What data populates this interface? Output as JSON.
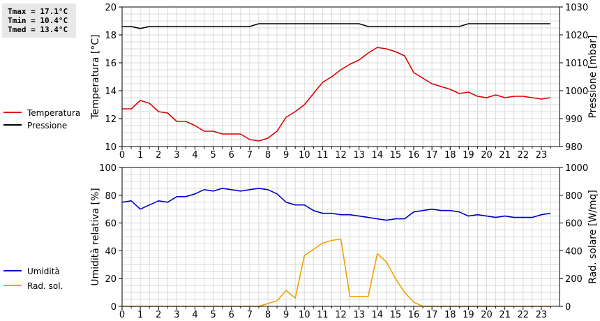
{
  "stats": {
    "tmax": "Tmax = 17.1°C",
    "tmin": "Tmin = 10.4°C",
    "tmed": "Tmed = 13.4°C"
  },
  "legend_top": [
    {
      "label": "Temperatura",
      "color": "#dd0000"
    },
    {
      "label": "Pressione",
      "color": "#000000"
    }
  ],
  "legend_bottom": [
    {
      "label": "Umidità",
      "color": "#0000cc"
    },
    {
      "label": "Rad. sol.",
      "color": "#f0a000"
    }
  ],
  "chart_data": [
    {
      "type": "line",
      "xlim": [
        0,
        24
      ],
      "x_ticks": [
        "0",
        "1",
        "2",
        "3",
        "4",
        "5",
        "6",
        "7",
        "8",
        "9",
        "10",
        "11",
        "12",
        "13",
        "14",
        "15",
        "16",
        "17",
        "18",
        "19",
        "20",
        "21",
        "22",
        "23"
      ],
      "grid": true,
      "ylabel": "Temperatura [°C]",
      "ylim": [
        10,
        20
      ],
      "y_ticks": [
        "10",
        "12",
        "14",
        "16",
        "18",
        "20"
      ],
      "y2label": "Pressione [mbar]",
      "y2lim": [
        980,
        1030
      ],
      "y2_ticks": [
        "980",
        "990",
        "1000",
        "1010",
        "1020",
        "1030"
      ],
      "series": [
        {
          "name": "Temperatura",
          "color": "#dd0000",
          "axis": "left",
          "x": [
            0,
            0.5,
            1,
            1.5,
            2,
            2.5,
            3,
            3.5,
            4,
            4.5,
            5,
            5.5,
            6,
            6.5,
            7,
            7.5,
            8,
            8.5,
            9,
            9.5,
            10,
            10.5,
            11,
            11.5,
            12,
            12.5,
            13,
            13.5,
            14,
            14.5,
            15,
            15.5,
            16,
            16.5,
            17,
            17.5,
            18,
            18.5,
            19,
            19.5,
            20,
            20.5,
            21,
            21.5,
            22,
            22.5,
            23,
            23.5
          ],
          "values": [
            12.7,
            12.7,
            13.3,
            13.1,
            12.5,
            12.4,
            11.8,
            11.8,
            11.5,
            11.1,
            11.1,
            10.9,
            10.9,
            10.9,
            10.5,
            10.4,
            10.6,
            11.1,
            12.1,
            12.5,
            13.0,
            13.8,
            14.6,
            15.0,
            15.5,
            15.9,
            16.2,
            16.7,
            17.1,
            17.0,
            16.8,
            16.5,
            15.3,
            14.9,
            14.5,
            14.3,
            14.1,
            13.8,
            13.9,
            13.6,
            13.5,
            13.7,
            13.5,
            13.6,
            13.6,
            13.5,
            13.4,
            13.5
          ]
        },
        {
          "name": "Pressione",
          "color": "#000000",
          "axis": "right",
          "x": [
            0,
            0.5,
            1,
            1.5,
            2,
            3,
            4,
            5,
            6,
            7,
            7.5,
            8,
            9,
            10,
            11,
            12,
            13,
            13.5,
            14,
            15,
            16,
            17,
            18,
            18.5,
            19,
            20,
            21,
            22,
            23,
            23.5
          ],
          "values": [
            1023,
            1023,
            1022.3,
            1023,
            1023,
            1023,
            1023,
            1023,
            1023,
            1023,
            1024,
            1024,
            1024,
            1024,
            1024,
            1024,
            1024,
            1023,
            1023,
            1023,
            1023,
            1023,
            1023,
            1023,
            1024,
            1024,
            1024,
            1024,
            1024,
            1024
          ]
        }
      ]
    },
    {
      "type": "line",
      "xlim": [
        0,
        24
      ],
      "x_ticks": [
        "0",
        "1",
        "2",
        "3",
        "4",
        "5",
        "6",
        "7",
        "8",
        "9",
        "10",
        "11",
        "12",
        "13",
        "14",
        "15",
        "16",
        "17",
        "18",
        "19",
        "20",
        "21",
        "22",
        "23"
      ],
      "grid": true,
      "ylabel": "Umidità relativa [%]",
      "ylim": [
        0,
        100
      ],
      "y_ticks": [
        "0",
        "20",
        "40",
        "60",
        "80",
        "100"
      ],
      "y2label": "Rad. solare [W/mq]",
      "y2lim": [
        0,
        1000
      ],
      "y2_ticks": [
        "0",
        "200",
        "400",
        "600",
        "800",
        "1000"
      ],
      "series": [
        {
          "name": "Umidità",
          "color": "#0000cc",
          "axis": "left",
          "x": [
            0,
            0.5,
            1,
            1.5,
            2,
            2.5,
            3,
            3.5,
            4,
            4.5,
            5,
            5.5,
            6,
            6.5,
            7,
            7.5,
            8,
            8.5,
            9,
            9.5,
            10,
            10.5,
            11,
            11.5,
            12,
            12.5,
            13,
            13.5,
            14,
            14.5,
            15,
            15.5,
            16,
            16.5,
            17,
            17.5,
            18,
            18.5,
            19,
            19.5,
            20,
            20.5,
            21,
            21.5,
            22,
            22.5,
            23,
            23.5
          ],
          "values": [
            75,
            76,
            70,
            73,
            76,
            75,
            79,
            79,
            81,
            84,
            83,
            85,
            84,
            83,
            84,
            85,
            84,
            81,
            75,
            73,
            73,
            69,
            67,
            67,
            66,
            66,
            65,
            64,
            63,
            62,
            63,
            63,
            68,
            69,
            70,
            69,
            69,
            68,
            65,
            66,
            65,
            64,
            65,
            64,
            64,
            64,
            66,
            67
          ]
        },
        {
          "name": "Rad. sol.",
          "color": "#f0a000",
          "axis": "right",
          "x": [
            0,
            7.5,
            8,
            8.5,
            9,
            9.5,
            10,
            10.5,
            11,
            11.5,
            12,
            12.5,
            13,
            13.5,
            14,
            14.5,
            15,
            15.5,
            16,
            16.5,
            17,
            23.5
          ],
          "values": [
            0,
            0,
            20,
            40,
            115,
            60,
            365,
            410,
            455,
            475,
            485,
            70,
            70,
            70,
            380,
            320,
            200,
            100,
            30,
            0,
            0,
            0
          ]
        }
      ]
    }
  ]
}
